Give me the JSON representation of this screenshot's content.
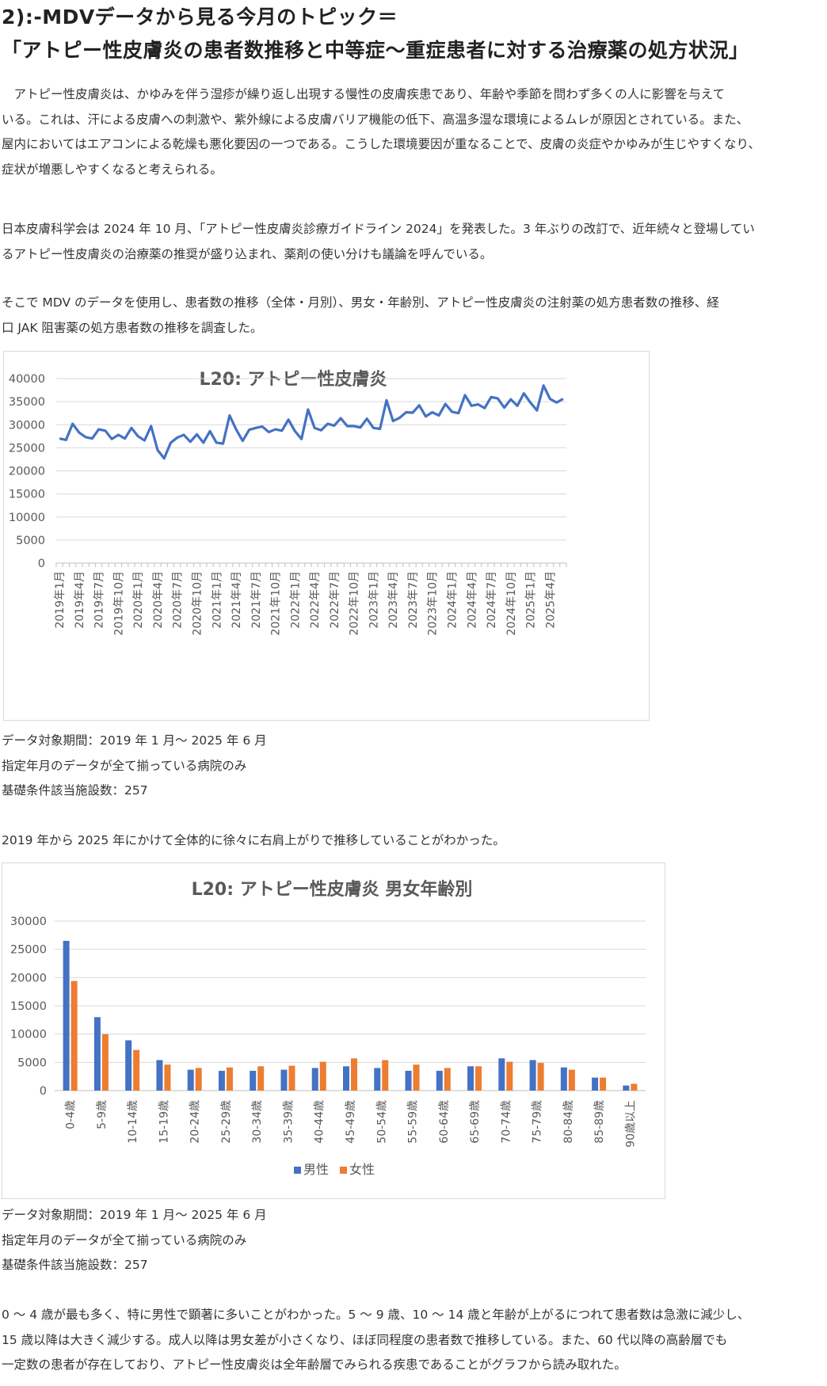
{
  "heading": {
    "line1": "2):-MDVデータから見る今月のトピック＝",
    "line2": "「アトピー性皮膚炎の患者数推移と中等症〜重症患者に対する治療薬の処方状況」"
  },
  "intro": {
    "p1": [
      "　アトピー性皮膚炎は、かゆみを伴う湿疹が繰り返し出現する慢性の皮膚疾患であり、年齢や季節を問わず多くの人に影響を与えて",
      "いる。これは、汗による皮膚への刺激や、紫外線による皮膚バリア機能の低下、高温多湿な環境によるムレが原因とされている。また、",
      "屋内においてはエアコンによる乾燥も悪化要因の一つである。こうした環境要因が重なることで、皮膚の炎症やかゆみが生じやすくなり、",
      "症状が増悪しやすくなると考えられる。"
    ],
    "p2": [
      "日本皮膚科学会は 2024 年 10 月、「アトピー性皮膚炎診療ガイドライン 2024」を発表した。3 年ぶりの改訂で、近年続々と登場してい",
      "るアトピー性皮膚炎の治療薬の推奨が盛り込まれ、薬剤の使い分けも議論を呼んでいる。"
    ],
    "p3": [
      "そこで MDV のデータを使用し、患者数の推移（全体・月別）、男女・年齢別、アトピー性皮膚炎の注射薬の処方患者数の推移、経",
      "口 JAK 阻害薬の処方患者数の推移を調査した。"
    ]
  },
  "notes1": [
    "データ対象期間：2019 年 1 月〜 2025 年 6 月",
    "指定年月のデータが全て揃っている病院のみ",
    "基礎条件該当施設数：257"
  ],
  "finding1": "2019 年から 2025 年にかけて全体的に徐々に右肩上がりで推移していることがわかった。",
  "notes2": [
    "データ対象期間：2019 年 1 月〜 2025 年 6 月",
    "指定年月のデータが全て揃っている病院のみ",
    "基礎条件該当施設数：257"
  ],
  "finding2": [
    "0 〜 4 歳が最も多く、特に男性で顕著に多いことがわかった。5 〜 9 歳、10 〜 14 歳と年齢が上がるにつれて患者数は急激に減少し、",
    "15 歳以降は大きく減少する。成人以降は男女差が小さくなり、ほぼ同程度の患者数で推移している。また、60 代以降の高齢層でも",
    "一定数の患者が存在しており、アトピー性皮膚炎は全年齢層でみられる疾患であることがグラフから読み取れた。"
  ],
  "chart_data": [
    {
      "type": "line",
      "title": "L20: アトピー性皮膚炎",
      "ylim": [
        0,
        40000
      ],
      "yticks": [
        "0",
        "5000",
        "10000",
        "15000",
        "20000",
        "25000",
        "30000",
        "35000",
        "40000"
      ],
      "grid": true,
      "legend": "none",
      "series_color": "#4472c4",
      "x_labels_shown": [
        "2019年1月",
        "2019年4月",
        "2019年7月",
        "2019年10月",
        "2020年1月",
        "2020年4月",
        "2020年7月",
        "2020年10月",
        "2021年1月",
        "2021年4月",
        "2021年7月",
        "2021年10月",
        "2022年1月",
        "2022年4月",
        "2022年7月",
        "2022年10月",
        "2023年1月",
        "2023年4月",
        "2023年7月",
        "2023年10月",
        "2024年1月",
        "2024年4月",
        "2024年7月",
        "2024年10月",
        "2025年1月",
        "2025年4月"
      ],
      "x_months": [
        "2019年1月",
        "2019年2月",
        "2019年3月",
        "2019年4月",
        "2019年5月",
        "2019年6月",
        "2019年7月",
        "2019年8月",
        "2019年9月",
        "2019年10月",
        "2019年11月",
        "2019年12月",
        "2020年1月",
        "2020年2月",
        "2020年3月",
        "2020年4月",
        "2020年5月",
        "2020年6月",
        "2020年7月",
        "2020年8月",
        "2020年9月",
        "2020年10月",
        "2020年11月",
        "2020年12月",
        "2021年1月",
        "2021年2月",
        "2021年3月",
        "2021年4月",
        "2021年5月",
        "2021年6月",
        "2021年7月",
        "2021年8月",
        "2021年9月",
        "2021年10月",
        "2021年11月",
        "2021年12月",
        "2022年1月",
        "2022年2月",
        "2022年3月",
        "2022年4月",
        "2022年5月",
        "2022年6月",
        "2022年7月",
        "2022年8月",
        "2022年9月",
        "2022年10月",
        "2022年11月",
        "2022年12月",
        "2023年1月",
        "2023年2月",
        "2023年3月",
        "2023年4月",
        "2023年5月",
        "2023年6月",
        "2023年7月",
        "2023年8月",
        "2023年9月",
        "2023年10月",
        "2023年11月",
        "2023年12月",
        "2024年1月",
        "2024年2月",
        "2024年3月",
        "2024年4月",
        "2024年5月",
        "2024年6月",
        "2024年7月",
        "2024年8月",
        "2024年9月",
        "2024年10月",
        "2024年11月",
        "2024年12月",
        "2025年1月",
        "2025年2月",
        "2025年3月",
        "2025年4月",
        "2025年5月",
        "2025年6月"
      ],
      "values": [
        27000,
        26700,
        30200,
        28300,
        27300,
        27000,
        29000,
        28700,
        26900,
        27800,
        27000,
        29300,
        27500,
        26600,
        29700,
        24500,
        22700,
        26100,
        27200,
        27800,
        26300,
        27900,
        26100,
        28600,
        26100,
        25900,
        32000,
        29000,
        26500,
        28900,
        29300,
        29600,
        28400,
        29000,
        28700,
        31100,
        28600,
        26900,
        33300,
        29300,
        28800,
        30200,
        29800,
        31400,
        29700,
        29700,
        29400,
        31300,
        29300,
        29100,
        35300,
        30800,
        31500,
        32700,
        32600,
        34200,
        31800,
        32700,
        32000,
        34500,
        32800,
        32500,
        36400,
        34100,
        34400,
        33600,
        36000,
        35700,
        33700,
        35500,
        34100,
        36800,
        34800,
        33100,
        38500,
        35600,
        34800,
        35600
      ]
    },
    {
      "type": "bar",
      "title": "L20: アトピー性皮膚炎  男女年齢別",
      "ylim": [
        0,
        30000
      ],
      "yticks": [
        "0",
        "5000",
        "10000",
        "15000",
        "20000",
        "25000",
        "30000"
      ],
      "grid": true,
      "legend": "bottom",
      "categories": [
        "0-4歳",
        "5-9歳",
        "10-14歳",
        "15-19歳",
        "20-24歳",
        "25-29歳",
        "30-34歳",
        "35-39歳",
        "40-44歳",
        "45-49歳",
        "50-54歳",
        "55-59歳",
        "60-64歳",
        "65-69歳",
        "70-74歳",
        "75-79歳",
        "80-84歳",
        "85-89歳",
        "90歳以上"
      ],
      "series": [
        {
          "name": "男性",
          "color": "#4472c4",
          "values": [
            26500,
            13000,
            8900,
            5400,
            3700,
            3500,
            3500,
            3700,
            4000,
            4300,
            4000,
            3500,
            3500,
            4300,
            5700,
            5400,
            4100,
            2300,
            900
          ]
        },
        {
          "name": "女性",
          "color": "#ed7d31",
          "values": [
            19400,
            10000,
            7200,
            4600,
            4000,
            4100,
            4300,
            4400,
            5100,
            5700,
            5400,
            4600,
            4000,
            4300,
            5100,
            4900,
            3700,
            2300,
            1200
          ]
        }
      ]
    }
  ]
}
